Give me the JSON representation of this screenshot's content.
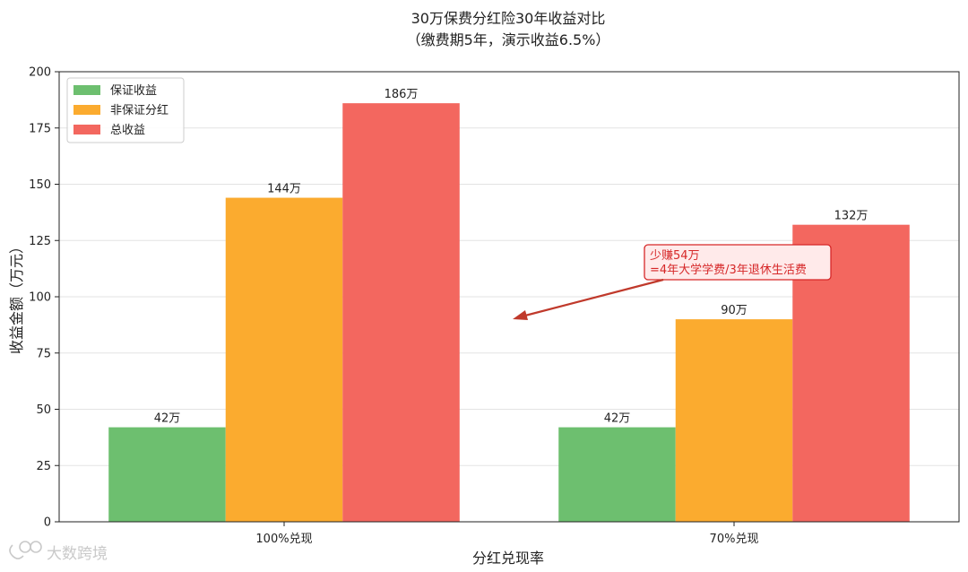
{
  "chart_data": {
    "type": "bar",
    "title": "30万保费分红险30年收益对比",
    "subtitle": "（缴费期5年，演示收益6.5%）",
    "xlabel": "分红兑现率",
    "ylabel": "收益金额（万元）",
    "categories": [
      "100%兑现",
      "70%兑现"
    ],
    "ylim": [
      0,
      200
    ],
    "yticks": [
      0,
      25,
      50,
      75,
      100,
      125,
      150,
      175,
      200
    ],
    "grid": true,
    "legend_position": "top-left",
    "value_suffix": "万",
    "series": [
      {
        "name": "保证收益",
        "values": [
          42,
          42
        ],
        "color": "#6dbf6f"
      },
      {
        "name": "非保证分红",
        "values": [
          144,
          90
        ],
        "color": "#fbab2f"
      },
      {
        "name": "总收益",
        "values": [
          186,
          132
        ],
        "color": "#f3675f"
      }
    ],
    "annotation": {
      "lines": [
        "少赚54万",
        "=4年大学学费/3年退休生活费"
      ],
      "color": "#d62728"
    }
  },
  "watermark": "大数跨境"
}
